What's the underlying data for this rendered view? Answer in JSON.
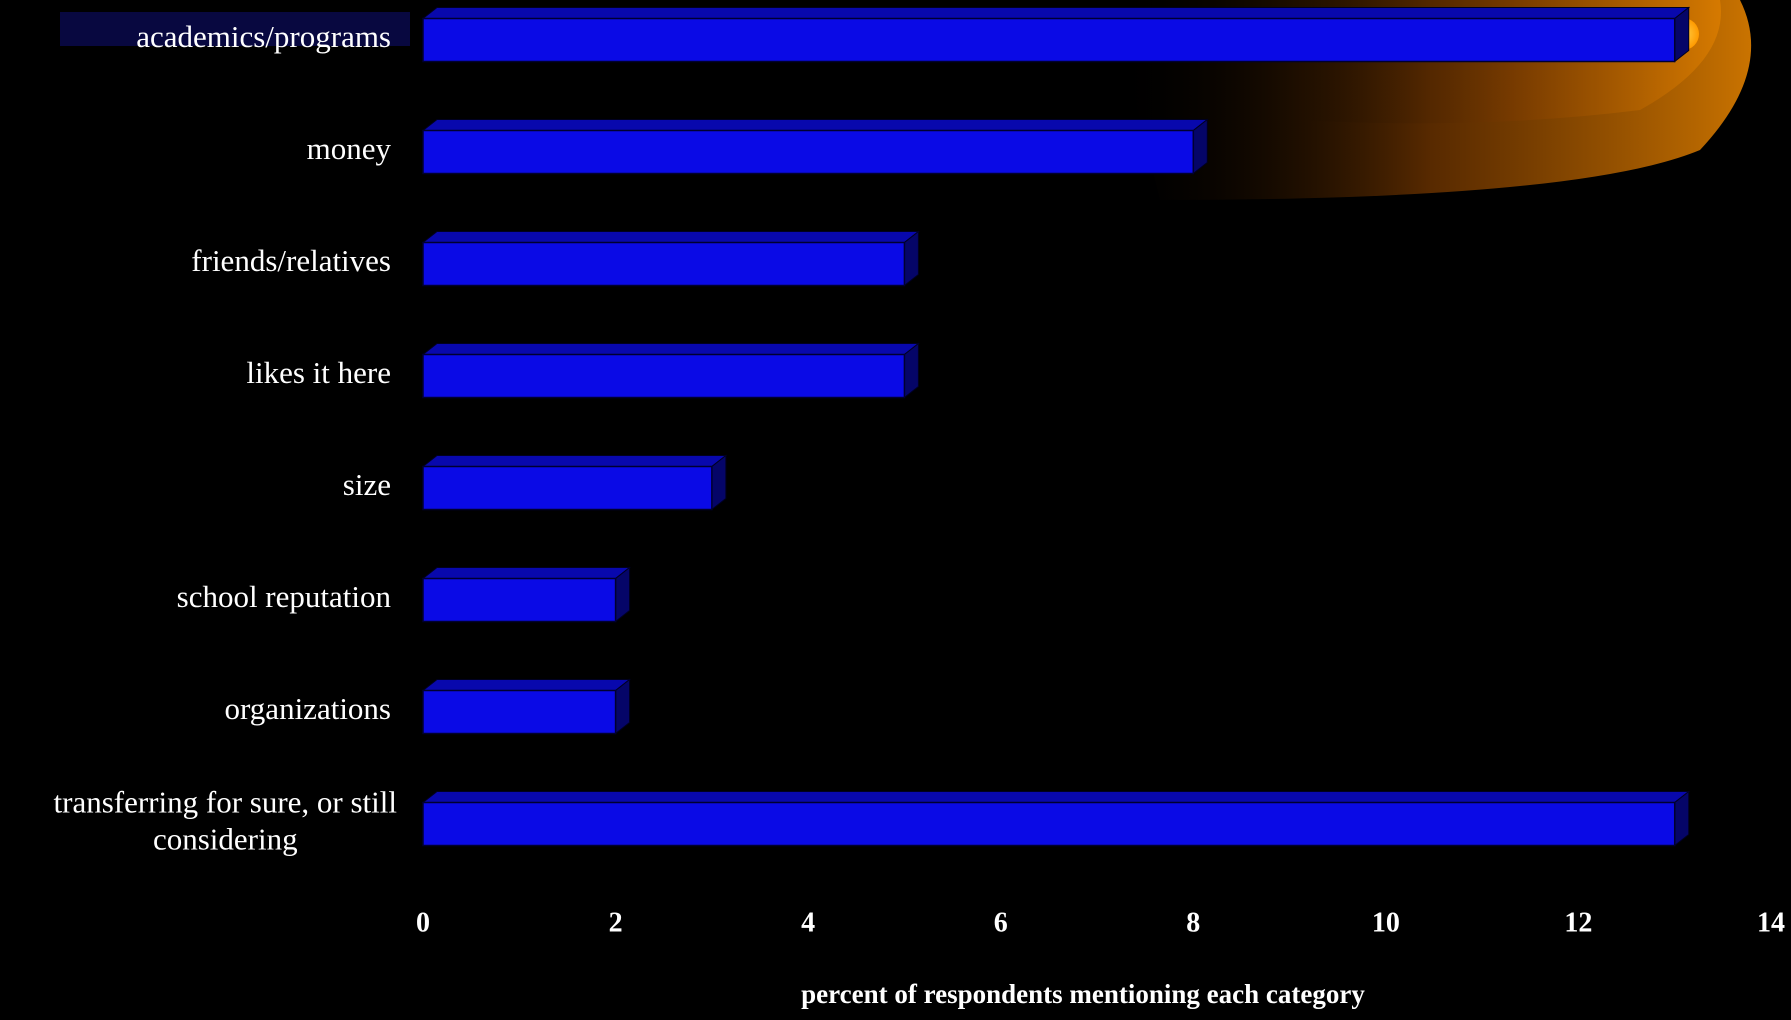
{
  "chart_data": {
    "type": "bar",
    "orientation": "horizontal",
    "categories": [
      "academics/programs",
      "money",
      "friends/relatives",
      "likes it here",
      "size",
      "school reputation",
      "organizations",
      "transferring for sure, or still considering"
    ],
    "values": [
      13,
      8,
      5,
      5,
      3,
      2,
      2,
      13
    ],
    "color": "#0a0ae6",
    "xlim": [
      0,
      14
    ],
    "xticks": [
      0,
      2,
      4,
      6,
      8,
      10,
      12,
      14
    ],
    "x_label": "percent of respondents mentioning each category"
  }
}
